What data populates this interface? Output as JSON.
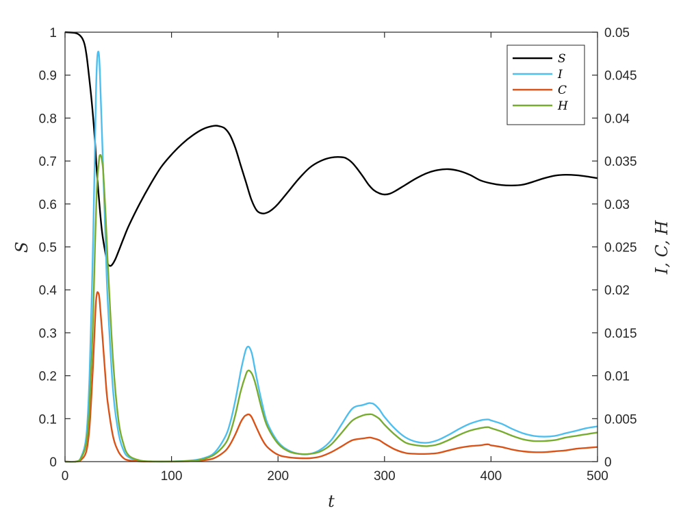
{
  "chart_data": {
    "type": "line",
    "xlabel": "t",
    "ylabel_left": "S",
    "ylabel_right": "I, C, H",
    "xlim": [
      0,
      500
    ],
    "ylim_left": [
      0,
      1
    ],
    "ylim_right": [
      0,
      0.05
    ],
    "grid": false,
    "legend_position": "top-right",
    "x_ticks": [
      "0",
      "100",
      "200",
      "300",
      "400",
      "500"
    ],
    "y_left_ticks": [
      "0",
      "0.1",
      "0.2",
      "0.3",
      "0.4",
      "0.5",
      "0.6",
      "0.7",
      "0.8",
      "0.9",
      "1"
    ],
    "y_right_ticks": [
      "0",
      "0.005",
      "0.01",
      "0.015",
      "0.02",
      "0.025",
      "0.03",
      "0.035",
      "0.04",
      "0.045",
      "0.05"
    ],
    "series": [
      {
        "name": "S",
        "axis": "left",
        "color": "#000000",
        "x": [
          0,
          10,
          15,
          18,
          20,
          22,
          25,
          28,
          30,
          33,
          35,
          38,
          40,
          42,
          44,
          47,
          50,
          55,
          60,
          70,
          80,
          90,
          100,
          110,
          120,
          130,
          140,
          145,
          150,
          155,
          160,
          165,
          170,
          175,
          180,
          185,
          190,
          195,
          200,
          210,
          220,
          230,
          240,
          250,
          260,
          265,
          270,
          275,
          280,
          285,
          290,
          295,
          300,
          305,
          310,
          320,
          330,
          340,
          350,
          360,
          370,
          380,
          390,
          400,
          410,
          420,
          430,
          440,
          450,
          460,
          470,
          480,
          490,
          500
        ],
        "values": [
          1.0,
          0.998,
          0.99,
          0.975,
          0.95,
          0.91,
          0.84,
          0.75,
          0.67,
          0.58,
          0.53,
          0.485,
          0.462,
          0.456,
          0.458,
          0.47,
          0.488,
          0.52,
          0.55,
          0.6,
          0.645,
          0.685,
          0.715,
          0.74,
          0.76,
          0.775,
          0.782,
          0.781,
          0.776,
          0.76,
          0.73,
          0.69,
          0.65,
          0.61,
          0.585,
          0.578,
          0.58,
          0.588,
          0.6,
          0.63,
          0.66,
          0.685,
          0.7,
          0.708,
          0.709,
          0.705,
          0.695,
          0.68,
          0.663,
          0.645,
          0.632,
          0.625,
          0.622,
          0.624,
          0.63,
          0.645,
          0.66,
          0.672,
          0.679,
          0.681,
          0.677,
          0.668,
          0.655,
          0.648,
          0.644,
          0.643,
          0.645,
          0.652,
          0.66,
          0.666,
          0.668,
          0.667,
          0.664,
          0.66
        ]
      },
      {
        "name": "I",
        "axis": "right",
        "color": "#4DBEEE",
        "x": [
          0,
          10,
          15,
          20,
          23,
          26,
          28,
          29,
          30,
          31,
          32,
          33,
          35,
          38,
          40,
          45,
          50,
          55,
          60,
          70,
          80,
          100,
          120,
          130,
          140,
          150,
          155,
          160,
          165,
          168,
          170,
          172,
          174,
          176,
          180,
          185,
          190,
          200,
          210,
          220,
          230,
          240,
          250,
          260,
          270,
          280,
          285,
          287,
          290,
          295,
          300,
          310,
          320,
          330,
          340,
          350,
          360,
          370,
          380,
          390,
          395,
          398,
          400,
          410,
          420,
          430,
          440,
          450,
          460,
          470,
          480,
          490,
          500
        ],
        "values": [
          0,
          0,
          0.0005,
          0.003,
          0.01,
          0.024,
          0.036,
          0.0425,
          0.0465,
          0.0477,
          0.0472,
          0.0445,
          0.037,
          0.026,
          0.019,
          0.0085,
          0.0035,
          0.0013,
          0.0005,
          0.0001,
          2e-05,
          2e-05,
          0.00015,
          0.0004,
          0.001,
          0.0028,
          0.0045,
          0.0072,
          0.0105,
          0.0122,
          0.0131,
          0.0134,
          0.0131,
          0.0123,
          0.0097,
          0.0068,
          0.0045,
          0.0023,
          0.0013,
          0.0009,
          0.0009,
          0.0014,
          0.0025,
          0.0044,
          0.0062,
          0.0066,
          0.0068,
          0.0068,
          0.0067,
          0.0061,
          0.0052,
          0.0038,
          0.0028,
          0.0023,
          0.0022,
          0.0025,
          0.0031,
          0.0038,
          0.0044,
          0.0048,
          0.0049,
          0.0049,
          0.0048,
          0.0044,
          0.0038,
          0.0033,
          0.003,
          0.0029,
          0.003,
          0.0033,
          0.0036,
          0.0039,
          0.0041
        ]
      },
      {
        "name": "C",
        "axis": "right",
        "color": "#D95319",
        "x": [
          0,
          10,
          15,
          20,
          23,
          26,
          28,
          29,
          30,
          31,
          32,
          33,
          35,
          38,
          40,
          45,
          50,
          55,
          60,
          70,
          80,
          100,
          120,
          130,
          140,
          150,
          155,
          160,
          165,
          168,
          170,
          172,
          174,
          176,
          180,
          185,
          190,
          200,
          210,
          220,
          230,
          240,
          250,
          260,
          270,
          280,
          285,
          287,
          290,
          295,
          300,
          310,
          320,
          330,
          340,
          350,
          360,
          370,
          380,
          390,
          395,
          398,
          400,
          410,
          420,
          430,
          440,
          450,
          460,
          470,
          480,
          490,
          500
        ],
        "values": [
          0,
          0,
          0.0002,
          0.0012,
          0.004,
          0.0105,
          0.016,
          0.0185,
          0.0196,
          0.0197,
          0.0193,
          0.018,
          0.0148,
          0.0098,
          0.007,
          0.003,
          0.0012,
          0.0004,
          0.00015,
          3e-05,
          1e-05,
          1e-05,
          6e-05,
          0.00015,
          0.0004,
          0.0012,
          0.002,
          0.0032,
          0.0046,
          0.0052,
          0.0054,
          0.0055,
          0.0054,
          0.005,
          0.0039,
          0.0026,
          0.0017,
          0.0008,
          0.0005,
          0.0004,
          0.0004,
          0.0006,
          0.0011,
          0.0018,
          0.0025,
          0.0027,
          0.0028,
          0.0028,
          0.0027,
          0.0025,
          0.0021,
          0.0014,
          0.001,
          0.0009,
          0.0009,
          0.001,
          0.0013,
          0.0016,
          0.0018,
          0.0019,
          0.002,
          0.002,
          0.0019,
          0.0017,
          0.0014,
          0.0012,
          0.0011,
          0.0011,
          0.0012,
          0.0013,
          0.0015,
          0.0016,
          0.0017
        ]
      },
      {
        "name": "H",
        "axis": "right",
        "color": "#77AC30",
        "x": [
          0,
          10,
          15,
          20,
          23,
          26,
          28,
          30,
          32,
          33,
          34,
          35,
          36,
          38,
          40,
          45,
          50,
          55,
          60,
          70,
          80,
          100,
          120,
          130,
          140,
          150,
          155,
          160,
          165,
          170,
          172,
          174,
          176,
          178,
          180,
          185,
          190,
          200,
          210,
          220,
          230,
          240,
          250,
          260,
          270,
          280,
          285,
          288,
          290,
          295,
          300,
          310,
          320,
          330,
          340,
          350,
          360,
          370,
          380,
          390,
          395,
          398,
          400,
          410,
          420,
          430,
          440,
          450,
          460,
          470,
          480,
          490,
          500
        ],
        "values": [
          0,
          0,
          0.0004,
          0.0022,
          0.0065,
          0.0155,
          0.0245,
          0.032,
          0.0352,
          0.0357,
          0.0355,
          0.0348,
          0.0335,
          0.029,
          0.0235,
          0.012,
          0.005,
          0.002,
          0.0007,
          0.00015,
          3e-05,
          2e-05,
          0.0001,
          0.0003,
          0.0008,
          0.002,
          0.0033,
          0.0055,
          0.0082,
          0.0102,
          0.0106,
          0.0105,
          0.0101,
          0.0094,
          0.0085,
          0.006,
          0.0041,
          0.0021,
          0.0012,
          0.0009,
          0.0009,
          0.0012,
          0.002,
          0.0034,
          0.0048,
          0.0054,
          0.0055,
          0.0055,
          0.0054,
          0.005,
          0.0043,
          0.0031,
          0.0022,
          0.0019,
          0.0018,
          0.002,
          0.0025,
          0.0031,
          0.0036,
          0.0039,
          0.004,
          0.004,
          0.0039,
          0.0035,
          0.003,
          0.0026,
          0.0024,
          0.0024,
          0.0025,
          0.0028,
          0.003,
          0.0032,
          0.0034
        ]
      }
    ]
  }
}
